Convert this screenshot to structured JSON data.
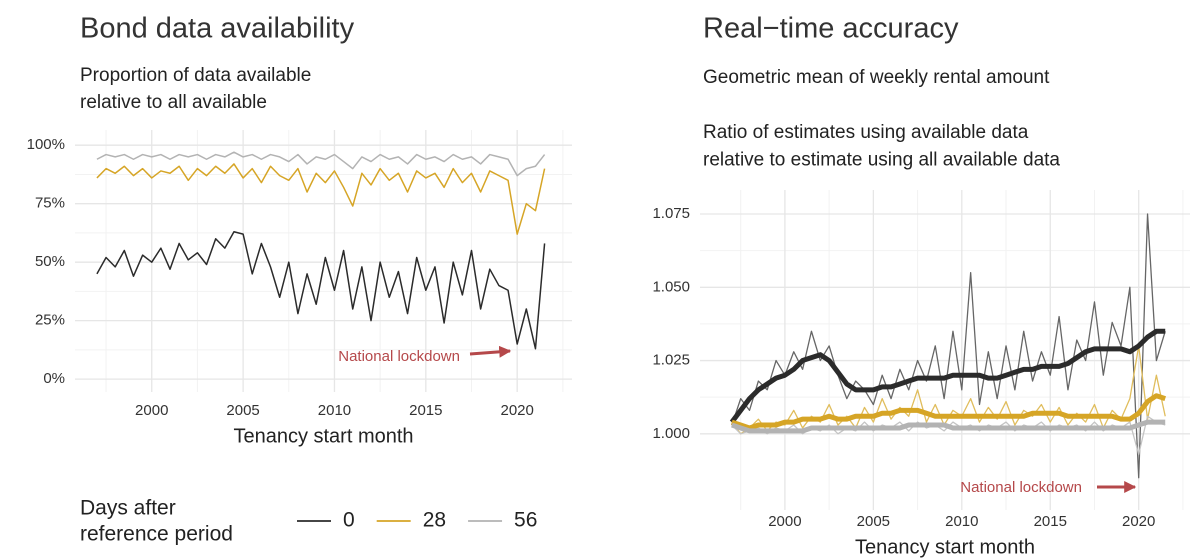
{
  "chart_data": [
    {
      "type": "line",
      "title": "Bond data availability",
      "subtitle": [
        "Proportion of data available",
        "relative to all available"
      ],
      "xlabel": "Tenancy start month",
      "legend_title": [
        "Days after",
        "reference period"
      ],
      "legend": "bottom",
      "annotation": "National lockdown",
      "grid": true,
      "xlim": [
        1995.8,
        2023
      ],
      "xticks": [
        2000,
        2005,
        2010,
        2015,
        2020
      ],
      "ylim": [
        -5.5,
        106.5
      ],
      "yticks": [
        {
          "value": 0,
          "label": "0%"
        },
        {
          "value": 25,
          "label": "25%"
        },
        {
          "value": 50,
          "label": "50%"
        },
        {
          "value": 75,
          "label": "75%"
        },
        {
          "value": 100,
          "label": "100%"
        }
      ],
      "x": [
        1997,
        1997.5,
        1998,
        1998.5,
        1999,
        1999.5,
        2000,
        2000.5,
        2001,
        2001.5,
        2002,
        2002.5,
        2003,
        2003.5,
        2004,
        2004.5,
        2005,
        2005.5,
        2006,
        2006.5,
        2007,
        2007.5,
        2008,
        2008.5,
        2009,
        2009.5,
        2010,
        2010.5,
        2011,
        2011.5,
        2012,
        2012.5,
        2013,
        2013.5,
        2014,
        2014.5,
        2015,
        2015.5,
        2016,
        2016.5,
        2017,
        2017.5,
        2018,
        2018.5,
        2019,
        2019.5,
        2020,
        2020.5,
        2021,
        2021.5
      ],
      "series": [
        {
          "name": "0",
          "color": "#2b2b2b",
          "width": 1.5,
          "values": [
            45,
            52,
            48,
            55,
            44,
            53,
            50,
            56,
            47,
            58,
            51,
            54,
            49,
            60,
            56,
            63,
            62,
            45,
            58,
            48,
            35,
            50,
            28,
            45,
            32,
            52,
            38,
            55,
            30,
            48,
            25,
            50,
            35,
            46,
            28,
            52,
            38,
            48,
            24,
            50,
            36,
            55,
            30,
            47,
            40,
            38,
            15,
            30,
            13,
            58
          ]
        },
        {
          "name": "28",
          "color": "#d6a526",
          "width": 1.5,
          "values": [
            86,
            90,
            88,
            91,
            87,
            90,
            86,
            89,
            88,
            91,
            85,
            90,
            87,
            91,
            88,
            92,
            86,
            90,
            84,
            91,
            87,
            85,
            90,
            80,
            88,
            84,
            89,
            82,
            74,
            88,
            83,
            90,
            85,
            88,
            80,
            89,
            86,
            88,
            82,
            90,
            84,
            88,
            80,
            89,
            87,
            85,
            62,
            75,
            72,
            90
          ]
        },
        {
          "name": "56",
          "color": "#b3b3b3",
          "width": 1.5,
          "values": [
            94,
            96,
            95,
            96,
            94,
            96,
            95,
            96,
            94,
            96,
            95,
            96,
            94,
            96,
            95,
            97,
            95,
            96,
            94,
            96,
            95,
            93,
            96,
            92,
            95,
            94,
            96,
            93,
            90,
            95,
            93,
            96,
            94,
            95,
            92,
            96,
            94,
            95,
            93,
            96,
            94,
            95,
            92,
            96,
            95,
            94,
            87,
            90,
            91,
            96
          ]
        }
      ]
    },
    {
      "type": "line",
      "title": "Real−time accuracy",
      "subtitle": [
        "Geometric mean of weekly rental amount",
        "",
        "Ratio of estimates using available data",
        "relative to estimate using all available data"
      ],
      "xlabel": "Tenancy start month",
      "annotation": "National lockdown",
      "grid": true,
      "xlim": [
        1995.2,
        2022.9
      ],
      "xticks": [
        2000,
        2005,
        2010,
        2015,
        2020
      ],
      "ylim": [
        0.974,
        1.0832
      ],
      "yticks": [
        {
          "value": 1.0,
          "label": "1.000"
        },
        {
          "value": 1.025,
          "label": "1.025"
        },
        {
          "value": 1.05,
          "label": "1.050"
        },
        {
          "value": 1.075,
          "label": "1.075"
        }
      ],
      "x": [
        1997,
        1997.5,
        1998,
        1998.5,
        1999,
        1999.5,
        2000,
        2000.5,
        2001,
        2001.5,
        2002,
        2002.5,
        2003,
        2003.5,
        2004,
        2004.5,
        2005,
        2005.5,
        2006,
        2006.5,
        2007,
        2007.5,
        2008,
        2008.5,
        2009,
        2009.5,
        2010,
        2010.5,
        2011,
        2011.5,
        2012,
        2012.5,
        2013,
        2013.5,
        2014,
        2014.5,
        2015,
        2015.5,
        2016,
        2016.5,
        2017,
        2017.5,
        2018,
        2018.5,
        2019,
        2019.5,
        2020,
        2020.5,
        2021,
        2021.5
      ],
      "series": [
        {
          "name": "0",
          "color": "#666666",
          "width": 1.3,
          "values": [
            1.003,
            1.012,
            1.008,
            1.018,
            1.015,
            1.025,
            1.02,
            1.028,
            1.022,
            1.035,
            1.025,
            1.03,
            1.02,
            1.012,
            1.018,
            1.015,
            1.01,
            1.02,
            1.012,
            1.022,
            1.015,
            1.025,
            1.018,
            1.03,
            1.012,
            1.035,
            1.015,
            1.055,
            1.01,
            1.028,
            1.012,
            1.03,
            1.015,
            1.035,
            1.018,
            1.028,
            1.02,
            1.04,
            1.015,
            1.032,
            1.025,
            1.045,
            1.02,
            1.038,
            1.03,
            1.05,
            0.985,
            1.075,
            1.025,
            1.035
          ]
        },
        {
          "name": "28",
          "color": "#e0bd5c",
          "width": 1.3,
          "values": [
            1.004,
            1.0,
            1.002,
            1.005,
            1.001,
            1.004,
            1.003,
            1.008,
            1.002,
            1.006,
            1.004,
            1.01,
            1.003,
            1.006,
            1.002,
            1.009,
            1.004,
            1.012,
            1.005,
            1.009,
            1.006,
            1.015,
            1.004,
            1.01,
            1.003,
            1.008,
            1.006,
            1.012,
            1.004,
            1.009,
            1.005,
            1.011,
            1.003,
            1.008,
            1.006,
            1.01,
            1.004,
            1.009,
            1.003,
            1.007,
            1.004,
            1.01,
            1.002,
            1.008,
            1.005,
            1.012,
            1.03,
            1.005,
            1.02,
            1.006
          ]
        },
        {
          "name": "56",
          "color": "#c4c4c4",
          "width": 1.3,
          "values": [
            1.003,
            1.0,
            1.001,
            1.002,
            1.0,
            1.002,
            1.001,
            1.003,
            1.0,
            1.002,
            1.001,
            1.003,
            1.0,
            1.002,
            1.001,
            1.004,
            1.001,
            1.003,
            1.002,
            1.004,
            1.001,
            1.004,
            1.002,
            1.003,
            1.001,
            1.004,
            1.002,
            1.003,
            1.001,
            1.003,
            1.002,
            1.004,
            1.001,
            1.003,
            1.002,
            1.004,
            1.001,
            1.003,
            1.002,
            1.003,
            1.001,
            1.004,
            1.001,
            1.003,
            1.002,
            1.004,
            0.993,
            1.006,
            1.004,
            1.003
          ]
        },
        {
          "color": "#2b2b2b",
          "width": 5,
          "values": [
            1.004,
            1.008,
            1.012,
            1.015,
            1.017,
            1.019,
            1.02,
            1.022,
            1.025,
            1.026,
            1.027,
            1.025,
            1.021,
            1.017,
            1.015,
            1.015,
            1.015,
            1.016,
            1.016,
            1.017,
            1.018,
            1.019,
            1.019,
            1.019,
            1.019,
            1.02,
            1.02,
            1.02,
            1.02,
            1.019,
            1.019,
            1.02,
            1.021,
            1.022,
            1.022,
            1.023,
            1.023,
            1.023,
            1.024,
            1.026,
            1.028,
            1.029,
            1.029,
            1.029,
            1.029,
            1.028,
            1.03,
            1.033,
            1.035,
            1.035
          ]
        },
        {
          "color": "#d6a526",
          "width": 5,
          "values": [
            1.004,
            1.003,
            1.002,
            1.003,
            1.003,
            1.003,
            1.004,
            1.004,
            1.005,
            1.005,
            1.005,
            1.006,
            1.005,
            1.005,
            1.006,
            1.006,
            1.006,
            1.007,
            1.007,
            1.008,
            1.008,
            1.008,
            1.007,
            1.006,
            1.006,
            1.006,
            1.006,
            1.006,
            1.006,
            1.006,
            1.006,
            1.006,
            1.006,
            1.006,
            1.007,
            1.007,
            1.007,
            1.007,
            1.006,
            1.006,
            1.006,
            1.006,
            1.006,
            1.006,
            1.005,
            1.005,
            1.007,
            1.011,
            1.013,
            1.012
          ]
        },
        {
          "color": "#b3b3b3",
          "width": 5,
          "values": [
            1.003,
            1.002,
            1.001,
            1.001,
            1.001,
            1.001,
            1.001,
            1.001,
            1.001,
            1.002,
            1.002,
            1.002,
            1.002,
            1.002,
            1.002,
            1.002,
            1.002,
            1.002,
            1.002,
            1.002,
            1.003,
            1.003,
            1.003,
            1.003,
            1.003,
            1.002,
            1.002,
            1.002,
            1.002,
            1.002,
            1.002,
            1.002,
            1.002,
            1.002,
            1.002,
            1.002,
            1.002,
            1.002,
            1.002,
            1.002,
            1.002,
            1.002,
            1.002,
            1.002,
            1.002,
            1.002,
            1.003,
            1.004,
            1.004,
            1.004
          ]
        }
      ]
    }
  ]
}
